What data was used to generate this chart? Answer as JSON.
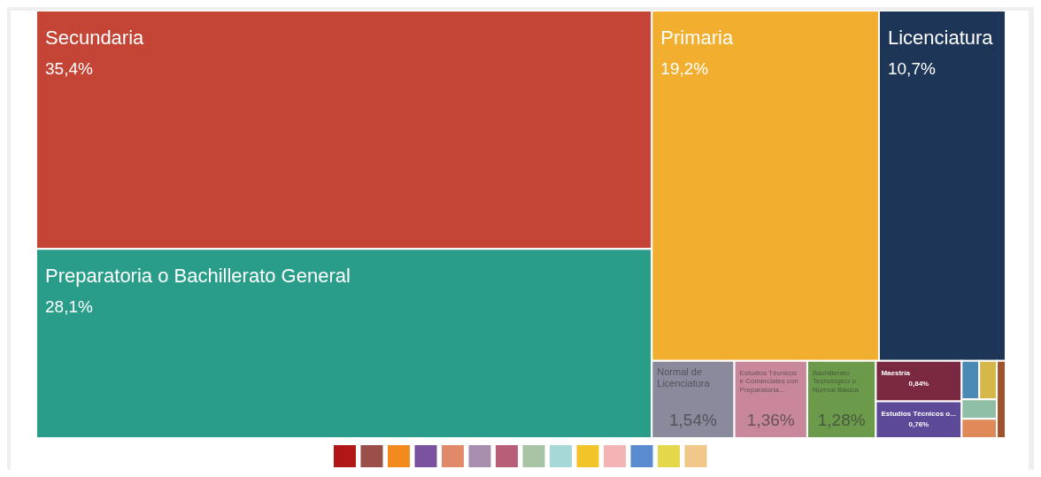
{
  "chart_data": {
    "type": "other",
    "categories": [
      "Secundaria",
      "Preparatoria o Bachillerato General",
      "Primaria",
      "Licenciatura",
      "Normal de Licenciatura",
      "Estudios Técnicos e Comerciales con Preparatoria...",
      "Bachillerato Tecnológico o Normal Básica",
      "Maestría",
      "Estudios Técnicos o...",
      null,
      null,
      null,
      null,
      null
    ],
    "values": [
      35.4,
      28.1,
      19.2,
      10.7,
      1.54,
      1.36,
      1.28,
      0.84,
      0.76,
      null,
      null,
      null,
      null,
      null
    ],
    "value_labels": [
      "35,4%",
      "28,1%",
      "19,2%",
      "10,7%",
      "1,54%",
      "1,36%",
      "1,28%",
      "0,84%",
      "0,76%",
      null,
      null,
      null,
      null,
      null
    ],
    "colors": [
      "#c44536",
      "#2a9d8a",
      "#f2ae2e",
      "#1d3557",
      "#8b8a9c",
      "#c9879b",
      "#6a9a4a",
      "#7a2940",
      "#5c4a99",
      "#4a8ab5",
      "#d6b84a",
      "#8fbfa5",
      "#e08a5a",
      "#a0522d"
    ]
  }
}
